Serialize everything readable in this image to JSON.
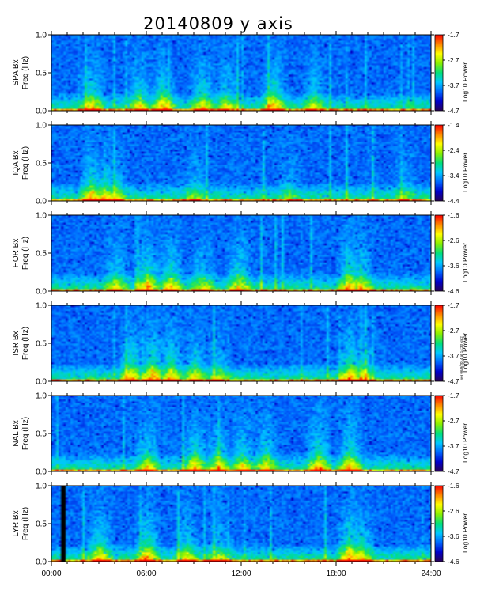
{
  "title": "20140809  y axis",
  "side_note": "ver 06/9/2014 at 14:33 km2",
  "chart_data": {
    "type": "heatmap",
    "title": "20140809  y axis",
    "x_ticks": [
      "00:00",
      "06:00",
      "12:00",
      "18:00",
      "24:00"
    ],
    "x_range_hours": [
      0,
      24
    ],
    "y_ticks": [
      "0.0",
      "0.5",
      "1.0"
    ],
    "y_range_hz": [
      0,
      1
    ],
    "colorbar_label": "Log10 Power",
    "colormap": [
      "#2a0055",
      "#0000cc",
      "#0066ff",
      "#00c8ff",
      "#00e07a",
      "#8cf000",
      "#ffff00",
      "#ff8800",
      "#ff0000"
    ],
    "panels": [
      {
        "station_label": "SPA Bx",
        "freq_label": "Freq (Hz)",
        "colorbar_ticks": [
          "-1.7",
          "-2.7",
          "-3.7",
          "-4.7"
        ],
        "colorbar_range": [
          -4.7,
          -1.7
        ],
        "bursts": [
          [
            2.5,
            0.45
          ],
          [
            5.5,
            0.4
          ],
          [
            7.0,
            0.5
          ],
          [
            9.5,
            0.45
          ],
          [
            11.0,
            0.35
          ],
          [
            14.0,
            0.55
          ],
          [
            16.5,
            0.35
          ]
        ]
      },
      {
        "station_label": "IQA Bx",
        "freq_label": "Freq (Hz)",
        "colorbar_ticks": [
          "-1.4",
          "-2.4",
          "-3.4",
          "-4.4"
        ],
        "colorbar_range": [
          -4.4,
          -1.4
        ],
        "bursts": [
          [
            2.5,
            0.5
          ],
          [
            3.3,
            0.45
          ],
          [
            4.0,
            0.35
          ],
          [
            9.0,
            0.25
          ],
          [
            15.0,
            0.2
          ],
          [
            22.3,
            0.2
          ]
        ]
      },
      {
        "station_label": "HOR Bx",
        "freq_label": "Freq (Hz)",
        "colorbar_ticks": [
          "-1.6",
          "-2.6",
          "-3.6",
          "-4.6"
        ],
        "colorbar_range": [
          -4.6,
          -1.6
        ],
        "bursts": [
          [
            4.0,
            0.4
          ],
          [
            6.0,
            0.55
          ],
          [
            7.5,
            0.45
          ],
          [
            9.5,
            0.35
          ],
          [
            11.8,
            0.45
          ],
          [
            18.8,
            0.55
          ],
          [
            19.5,
            0.45
          ]
        ]
      },
      {
        "station_label": "ISR Bx",
        "freq_label": "Freq (Hz)",
        "colorbar_ticks": [
          "-1.7",
          "-2.7",
          "-3.7",
          "-4.7"
        ],
        "colorbar_range": [
          -4.7,
          -1.7
        ],
        "bursts": [
          [
            5.0,
            0.5
          ],
          [
            6.3,
            0.6
          ],
          [
            7.5,
            0.5
          ],
          [
            9.0,
            0.4
          ],
          [
            10.5,
            0.3
          ],
          [
            18.8,
            0.55
          ],
          [
            19.6,
            0.4
          ]
        ]
      },
      {
        "station_label": "NAL Bx",
        "freq_label": "Freq (Hz)",
        "colorbar_ticks": [
          "-1.7",
          "-2.7",
          "-3.7",
          "-4.7"
        ],
        "colorbar_range": [
          -4.7,
          -1.7
        ],
        "bursts": [
          [
            6.0,
            0.45
          ],
          [
            9.0,
            0.5
          ],
          [
            10.5,
            0.45
          ],
          [
            12.0,
            0.4
          ],
          [
            13.5,
            0.45
          ],
          [
            16.8,
            0.55
          ],
          [
            18.8,
            0.55
          ]
        ]
      },
      {
        "station_label": "LYR Bx",
        "freq_label": "Freq (Hz)",
        "colorbar_ticks": [
          "-1.6",
          "-2.6",
          "-3.6",
          "-4.6"
        ],
        "colorbar_range": [
          -4.6,
          -1.6
        ],
        "gap_hours": [
          0.45,
          0.8
        ],
        "bursts": [
          [
            3.0,
            0.45
          ],
          [
            6.0,
            0.55
          ],
          [
            8.5,
            0.4
          ],
          [
            10.5,
            0.3
          ],
          [
            18.8,
            0.6
          ],
          [
            19.5,
            0.45
          ]
        ]
      }
    ]
  }
}
